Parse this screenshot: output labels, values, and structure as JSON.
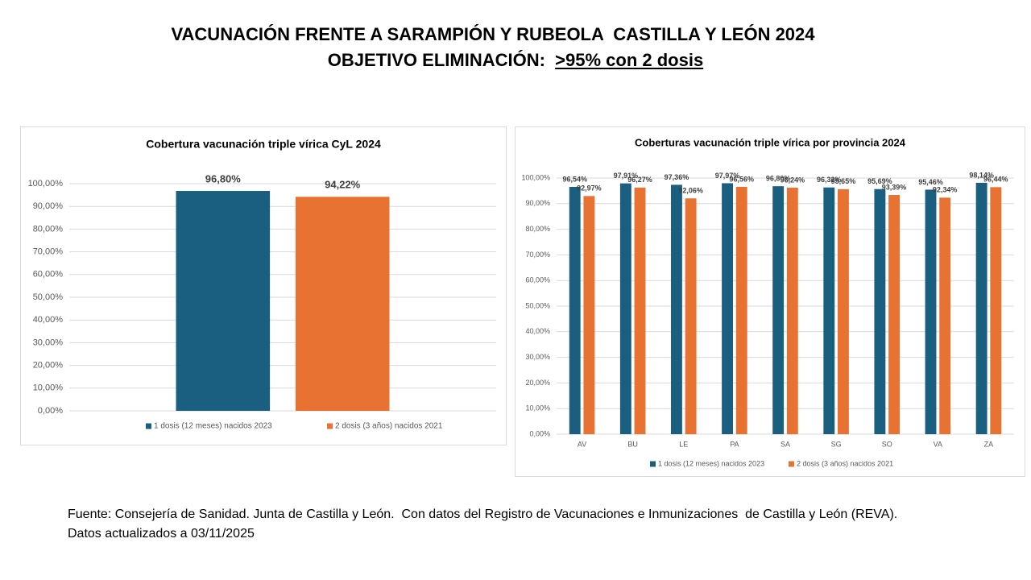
{
  "header": {
    "line1": "VACUNACIÓN FRENTE A SARAMPIÓN Y RUBEOLA  CASTILLA Y LEÓN 2024",
    "line2": "OBJETIVO ELIMINACIÓN:",
    "target": ">95% con 2 dosis"
  },
  "chart_data": [
    {
      "type": "bar",
      "title": "Cobertura vacunación  triple vírica CyL 2024",
      "categories": [
        null
      ],
      "series": [
        {
          "name": "1 dosis (12 meses) nacidos 2023",
          "color": "#1a5f80",
          "values": [
            96.8
          ],
          "value_labels": [
            "96,80%"
          ]
        },
        {
          "name": "2 dosis  (3 años) nacidos 2021",
          "color": "#e87232",
          "values": [
            94.22
          ],
          "value_labels": [
            "94,22%"
          ]
        }
      ],
      "ylim": [
        0,
        100
      ],
      "yticks": [
        {
          "value": 0,
          "label": "0,00%"
        },
        {
          "value": 10,
          "label": "10,00%"
        },
        {
          "value": 20,
          "label": "20,00%"
        },
        {
          "value": 30,
          "label": "30,00%"
        },
        {
          "value": 40,
          "label": "40,00%"
        },
        {
          "value": 50,
          "label": "50,00%"
        },
        {
          "value": 60,
          "label": "60,00%"
        },
        {
          "value": 70,
          "label": "70,00%"
        },
        {
          "value": 80,
          "label": "80,00%"
        },
        {
          "value": 90,
          "label": "90,00%"
        },
        {
          "value": 100,
          "label": "100,00%"
        }
      ],
      "grid": true,
      "legend": "bottom"
    },
    {
      "type": "bar",
      "title": "Coberturas vacunación  triple vírica  por provincia 2024",
      "categories": [
        "AV",
        "BU",
        "LE",
        "PA",
        "SA",
        "SG",
        "SO",
        "VA",
        "ZA"
      ],
      "series": [
        {
          "name": "1 dosis (12 meses) nacidos 2023",
          "color": "#1a5f80",
          "values": [
            96.54,
            97.91,
            97.36,
            97.97,
            96.8,
            96.32,
            95.69,
            95.46,
            98.14
          ],
          "value_labels": [
            "96,54%",
            "97,91%",
            "97,36%",
            "97,97%",
            "96,80%",
            "96,32%",
            "95,69%",
            "95,46%",
            "98,14%"
          ]
        },
        {
          "name": "2 dosis  (3 años) nacidos 2021",
          "color": "#e87232",
          "values": [
            92.97,
            96.27,
            92.06,
            96.56,
            96.24,
            95.65,
            93.39,
            92.34,
            96.44
          ],
          "value_labels": [
            "92,97%",
            "96,27%",
            "92,06%",
            "96,56%",
            "96,24%",
            "95,65%",
            "93,39%",
            "92,34%",
            "96,44%"
          ]
        }
      ],
      "ylim": [
        0,
        100
      ],
      "yticks": [
        {
          "value": 0,
          "label": "0,00%"
        },
        {
          "value": 10,
          "label": "10,00%"
        },
        {
          "value": 20,
          "label": "20,00%"
        },
        {
          "value": 30,
          "label": "30,00%"
        },
        {
          "value": 40,
          "label": "40,00%"
        },
        {
          "value": 50,
          "label": "50,00%"
        },
        {
          "value": 60,
          "label": "60,00%"
        },
        {
          "value": 70,
          "label": "70,00%"
        },
        {
          "value": 80,
          "label": "80,00%"
        },
        {
          "value": 90,
          "label": "90,00%"
        },
        {
          "value": 100,
          "label": "100,00%"
        }
      ],
      "grid": true,
      "legend": "bottom"
    }
  ],
  "footer": {
    "source": "Fuente: Consejería de Sanidad. Junta de Castilla y León.  Con datos del Registro de Vacunaciones e Inmunizaciones  de Castilla y León (REVA).",
    "updated": "Datos actualizados a 03/11/2025"
  }
}
